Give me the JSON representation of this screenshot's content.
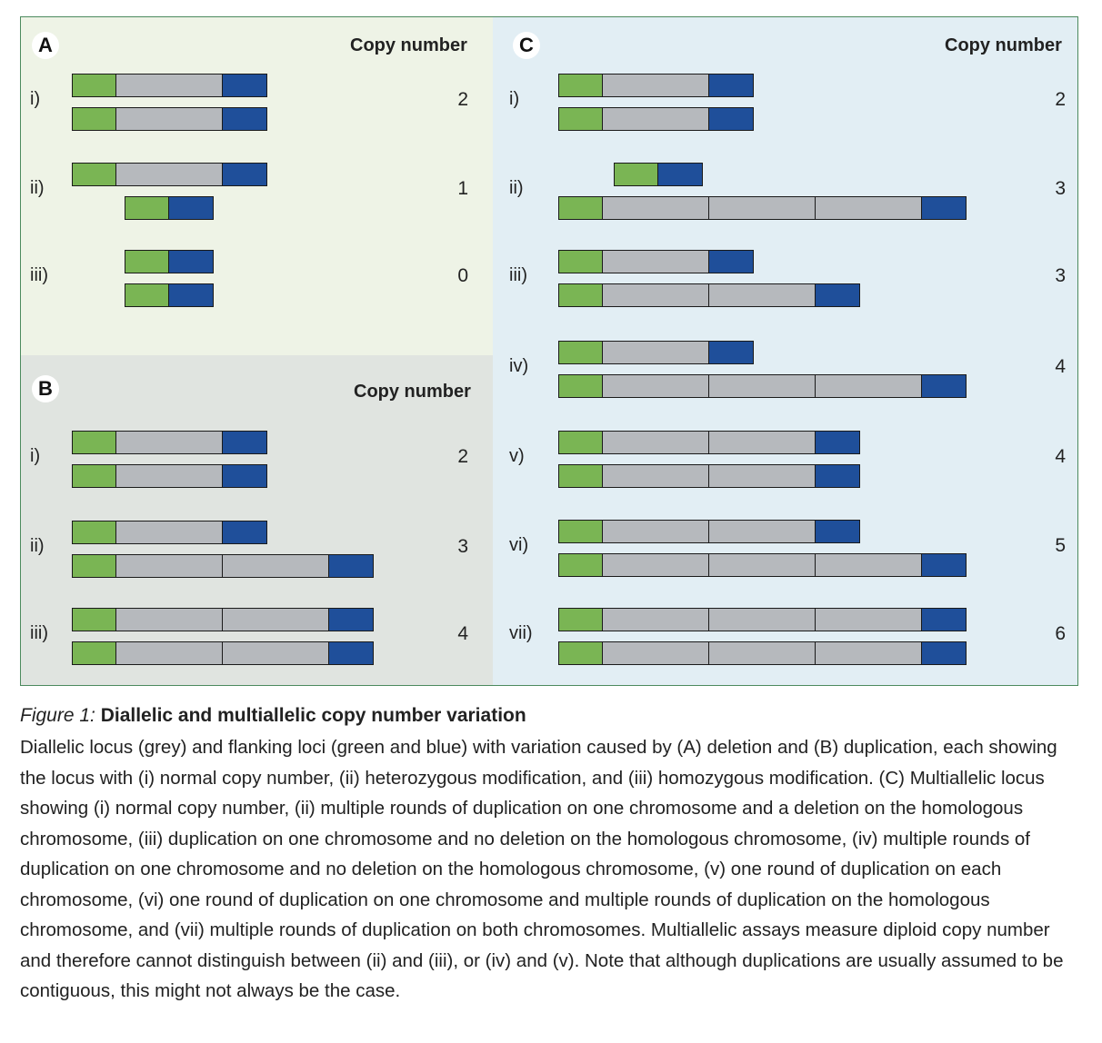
{
  "colors": {
    "green": "#7ab554",
    "grey": "#b6b9bd",
    "blue": "#1f4f9a",
    "panel_a_bg": "#eef3e6",
    "panel_b_bg": "#e0e4e0",
    "panel_c_bg": "#e2eef4",
    "frame": "#4c8a5e"
  },
  "panels": {
    "A": {
      "letter": "A",
      "heading": "Copy number",
      "rows": [
        {
          "label": "i)",
          "copy_number": "2",
          "chromosomes": [
            1,
            1
          ]
        },
        {
          "label": "ii)",
          "copy_number": "1",
          "chromosomes": [
            1,
            0
          ]
        },
        {
          "label": "iii)",
          "copy_number": "0",
          "chromosomes": [
            0,
            0
          ]
        }
      ]
    },
    "B": {
      "letter": "B",
      "heading": "Copy number",
      "rows": [
        {
          "label": "i)",
          "copy_number": "2",
          "chromosomes": [
            1,
            1
          ]
        },
        {
          "label": "ii)",
          "copy_number": "3",
          "chromosomes": [
            1,
            2
          ]
        },
        {
          "label": "iii)",
          "copy_number": "4",
          "chromosomes": [
            2,
            2
          ]
        }
      ]
    },
    "C": {
      "letter": "C",
      "heading": "Copy number",
      "rows": [
        {
          "label": "i)",
          "copy_number": "2",
          "chromosomes": [
            1,
            1
          ]
        },
        {
          "label": "ii)",
          "copy_number": "3",
          "chromosomes": [
            0,
            3
          ]
        },
        {
          "label": "iii)",
          "copy_number": "3",
          "chromosomes": [
            1,
            2
          ]
        },
        {
          "label": "iv)",
          "copy_number": "4",
          "chromosomes": [
            1,
            3
          ]
        },
        {
          "label": "v)",
          "copy_number": "4",
          "chromosomes": [
            2,
            2
          ]
        },
        {
          "label": "vi)",
          "copy_number": "5",
          "chromosomes": [
            2,
            3
          ]
        },
        {
          "label": "vii)",
          "copy_number": "6",
          "chromosomes": [
            3,
            3
          ]
        }
      ]
    }
  },
  "caption": {
    "figure_number": "Figure 1:",
    "title": " Diallelic and multiallelic copy number variation",
    "body": "Diallelic locus (grey) and flanking loci (green and blue) with variation caused by (A) deletion and (B) duplication, each showing the locus with (i) normal copy number, (ii) heterozygous modification, and (iii) homozygous modification. (C) Multiallelic locus showing (i) normal copy number, (ii) multiple rounds of duplication on one chromosome and a deletion on the homologous chromosome, (iii) duplication on one chromosome and no deletion on the homologous chromosome, (iv) multiple rounds of duplication on one chromosome and no deletion on the homologous chromosome, (v) one round of duplication on each chromosome, (vi) one round of duplication on one chromosome and multiple rounds of duplication on the homologous chromosome, and (vii) multiple rounds of duplication on both chromosomes. Multiallelic assays measure diploid copy number and therefore cannot distinguish between (ii) and (iii), or (iv) and (v). Note that although duplications are usually assumed to be contiguous, this might not always be the case."
  }
}
